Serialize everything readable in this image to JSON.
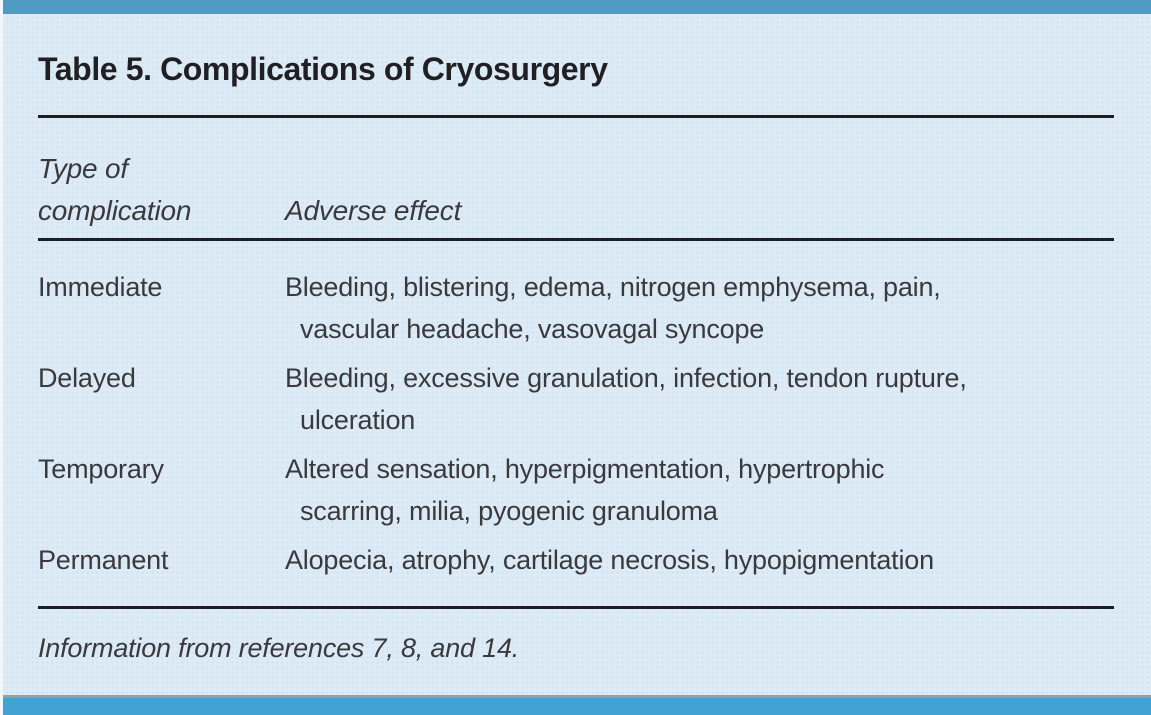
{
  "table": {
    "title": "Table 5. Complications of Cryosurgery",
    "header": {
      "col1_line1": "Type of",
      "col1_line2": "complication",
      "col2": "Adverse effect"
    },
    "rows": [
      {
        "type": "Immediate",
        "effect": "Bleeding, blistering, edema, nitrogen emphysema, pain, vascular headache, vasovagal syncope",
        "lines": [
          "Bleeding, blistering, edema, nitrogen emphysema, pain,",
          "vascular headache, vasovagal syncope"
        ]
      },
      {
        "type": "Delayed",
        "effect": "Bleeding, excessive granulation, infection, tendon rupture, ulceration",
        "lines": [
          "Bleeding, excessive granulation, infection, tendon rupture,",
          "ulceration"
        ]
      },
      {
        "type": "Temporary",
        "effect": "Altered sensation, hyperpigmentation, hypertrophic scarring, milia, pyogenic granuloma",
        "lines": [
          "Altered sensation, hyperpigmentation, hypertrophic",
          "scarring, milia, pyogenic granuloma"
        ]
      },
      {
        "type": "Permanent",
        "effect": "Alopecia, atrophy, cartilage necrosis, hypopigmentation",
        "lines": [
          "Alopecia, atrophy, cartilage necrosis, hypopigmentation"
        ]
      }
    ],
    "footnote": "Information from references 7, 8, and 14."
  },
  "colors": {
    "background": "#dcebf5",
    "top_bar": "#4f9bc4",
    "bottom_bar": "#42a2d3",
    "bar_shadow": "#999fa3",
    "rule": "#1e1e20",
    "title_text": "#202024",
    "body_text": "#3a3a3e"
  }
}
